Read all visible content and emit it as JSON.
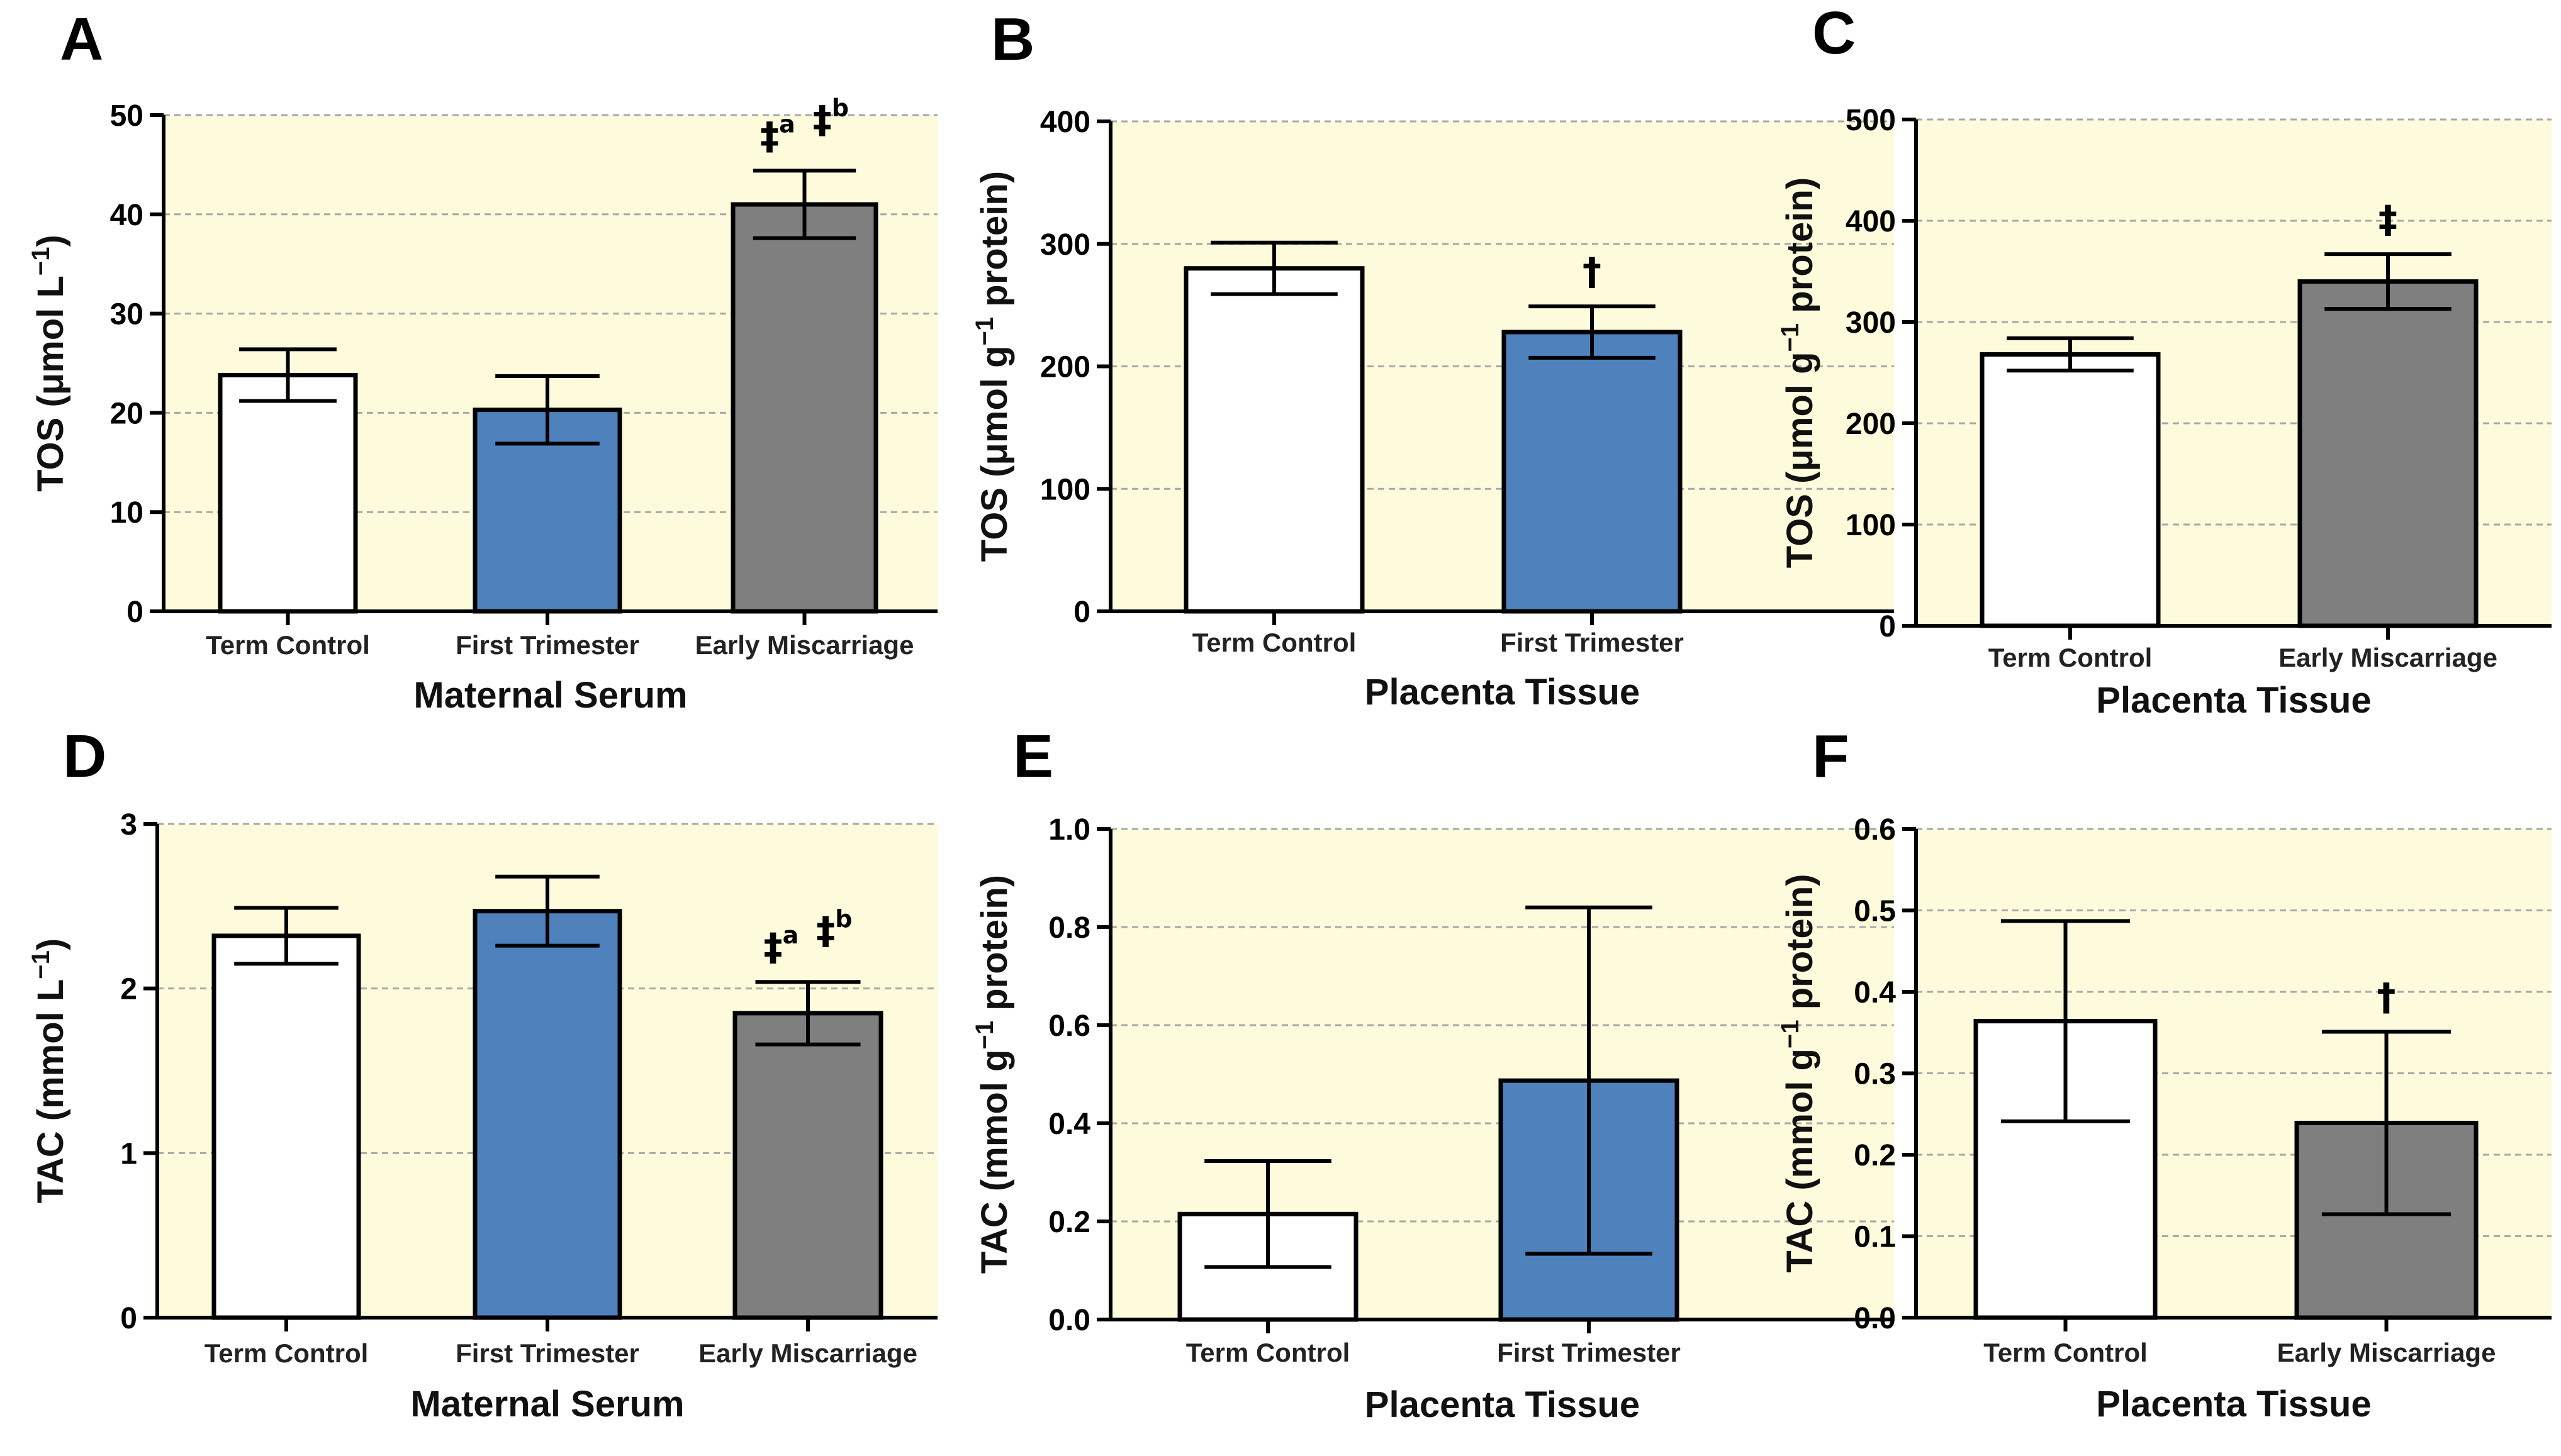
{
  "colors": {
    "panel_bg": "#fdfbdc",
    "grid": "#a8a8a8",
    "term": "#ffffff",
    "first": "#4f81bd",
    "early": "#7f7f7f",
    "axis": "#000000"
  },
  "chart_data": [
    {
      "panel": "A",
      "type": "bar",
      "categories": [
        "Term Control",
        "First Trimester",
        "Early Miscarriage"
      ],
      "values": [
        23.8,
        20.3,
        41.0
      ],
      "errors": [
        2.6,
        3.4,
        3.4
      ],
      "colors": [
        "#ffffff",
        "#4f81bd",
        "#7f7f7f"
      ],
      "ylim": [
        0,
        50
      ],
      "yticks": [
        0,
        10,
        20,
        30,
        40,
        50
      ],
      "ytick_labels": [
        "0",
        "10",
        "20",
        "30",
        "40",
        "50"
      ],
      "xlabel": "Maternal Serum",
      "ylabel_pre": "TOS (μmol L",
      "ylabel_sup": "−1",
      "ylabel_post": ")",
      "annotations": [
        {
          "bar": 2,
          "label": "‡a ‡b"
        }
      ]
    },
    {
      "panel": "B",
      "type": "bar",
      "categories": [
        "Term Control",
        "First Trimester"
      ],
      "values": [
        280,
        228
      ],
      "errors": [
        21,
        21
      ],
      "colors": [
        "#ffffff",
        "#4f81bd"
      ],
      "ylim": [
        0,
        400
      ],
      "yticks": [
        0,
        100,
        200,
        300,
        400
      ],
      "ytick_labels": [
        "0",
        "100",
        "200",
        "300",
        "400"
      ],
      "xlabel": "Placenta Tissue",
      "ylabel_pre": "TOS (μmol g",
      "ylabel_sup": "−1",
      "ylabel_post": " protein)",
      "annotations": [
        {
          "bar": 1,
          "label": "†"
        }
      ]
    },
    {
      "panel": "C",
      "type": "bar",
      "categories": [
        "Term Control",
        "Early Miscarriage"
      ],
      "values": [
        268,
        340
      ],
      "errors": [
        16,
        27
      ],
      "colors": [
        "#ffffff",
        "#7f7f7f"
      ],
      "ylim": [
        0,
        500
      ],
      "yticks": [
        0,
        100,
        200,
        300,
        400,
        500
      ],
      "ytick_labels": [
        "0",
        "100",
        "200",
        "300",
        "400",
        "500"
      ],
      "xlabel": "Placenta Tissue",
      "ylabel_pre": "TOS (μmol g",
      "ylabel_sup": "−1",
      "ylabel_post": " protein)",
      "annotations": [
        {
          "bar": 1,
          "label": "‡"
        }
      ]
    },
    {
      "panel": "D",
      "type": "bar",
      "categories": [
        "Term Control",
        "First Trimester",
        "Early Miscarriage"
      ],
      "values": [
        2.32,
        2.47,
        1.85
      ],
      "errors": [
        0.17,
        0.21,
        0.19
      ],
      "colors": [
        "#ffffff",
        "#4f81bd",
        "#7f7f7f"
      ],
      "ylim": [
        0,
        3
      ],
      "yticks": [
        0,
        1,
        2,
        3
      ],
      "ytick_labels": [
        "0",
        "1",
        "2",
        "3"
      ],
      "xlabel": "Maternal Serum",
      "ylabel_pre": "TAC (mmol L",
      "ylabel_sup": "−1",
      "ylabel_post": ")",
      "annotations": [
        {
          "bar": 2,
          "label": "‡a ‡b"
        }
      ]
    },
    {
      "panel": "E",
      "type": "bar",
      "categories": [
        "Term Control",
        "First Trimester"
      ],
      "values": [
        0.215,
        0.487
      ],
      "errors": [
        0.108,
        0.353
      ],
      "colors": [
        "#ffffff",
        "#4f81bd"
      ],
      "ylim": [
        0,
        1.0
      ],
      "yticks": [
        0,
        0.2,
        0.4,
        0.6,
        0.8,
        1.0
      ],
      "ytick_labels": [
        "0.0",
        "0.2",
        "0.4",
        "0.6",
        "0.8",
        "1.0"
      ],
      "xlabel": "Placenta Tissue",
      "ylabel_pre": "TAC (mmol g",
      "ylabel_sup": "−1",
      "ylabel_post": " protein)",
      "annotations": []
    },
    {
      "panel": "F",
      "type": "bar",
      "categories": [
        "Term Control",
        "Early Miscarriage"
      ],
      "values": [
        0.364,
        0.239
      ],
      "errors": [
        0.123,
        0.112
      ],
      "colors": [
        "#ffffff",
        "#7f7f7f"
      ],
      "ylim": [
        0,
        0.6
      ],
      "yticks": [
        0,
        0.1,
        0.2,
        0.3,
        0.4,
        0.5,
        0.6
      ],
      "ytick_labels": [
        "0.0",
        "0.1",
        "0.2",
        "0.3",
        "0.4",
        "0.5",
        "0.6"
      ],
      "xlabel": "Placenta Tissue",
      "ylabel_pre": "TAC (mmol g",
      "ylabel_sup": "−1",
      "ylabel_post": " protein)",
      "annotations": [
        {
          "bar": 1,
          "label": "†"
        }
      ]
    }
  ]
}
